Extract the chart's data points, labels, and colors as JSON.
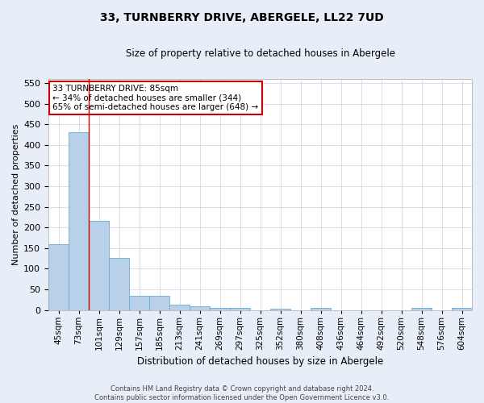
{
  "title1": "33, TURNBERRY DRIVE, ABERGELE, LL22 7UD",
  "title2": "Size of property relative to detached houses in Abergele",
  "xlabel": "Distribution of detached houses by size in Abergele",
  "ylabel": "Number of detached properties",
  "categories": [
    "45sqm",
    "73sqm",
    "101sqm",
    "129sqm",
    "157sqm",
    "185sqm",
    "213sqm",
    "241sqm",
    "269sqm",
    "297sqm",
    "325sqm",
    "352sqm",
    "380sqm",
    "408sqm",
    "436sqm",
    "464sqm",
    "492sqm",
    "520sqm",
    "548sqm",
    "576sqm",
    "604sqm"
  ],
  "values": [
    160,
    430,
    215,
    127,
    35,
    35,
    12,
    9,
    5,
    5,
    0,
    3,
    0,
    5,
    0,
    0,
    0,
    0,
    5,
    0,
    5
  ],
  "bar_color": "#b8d0e8",
  "bar_edge_color": "#6aaad4",
  "vline_x": 1.5,
  "vline_color": "#cc0000",
  "annotation_title": "33 TURNBERRY DRIVE: 85sqm",
  "annotation_line1": "← 34% of detached houses are smaller (344)",
  "annotation_line2": "65% of semi-detached houses are larger (648) →",
  "annotation_box_color": "#ffffff",
  "annotation_box_edge": "#cc0000",
  "ylim": [
    0,
    560
  ],
  "yticks": [
    0,
    50,
    100,
    150,
    200,
    250,
    300,
    350,
    400,
    450,
    500,
    550
  ],
  "footer1": "Contains HM Land Registry data © Crown copyright and database right 2024.",
  "footer2": "Contains public sector information licensed under the Open Government Licence v3.0.",
  "bg_color": "#e8eef8",
  "plot_bg_color": "#ffffff"
}
